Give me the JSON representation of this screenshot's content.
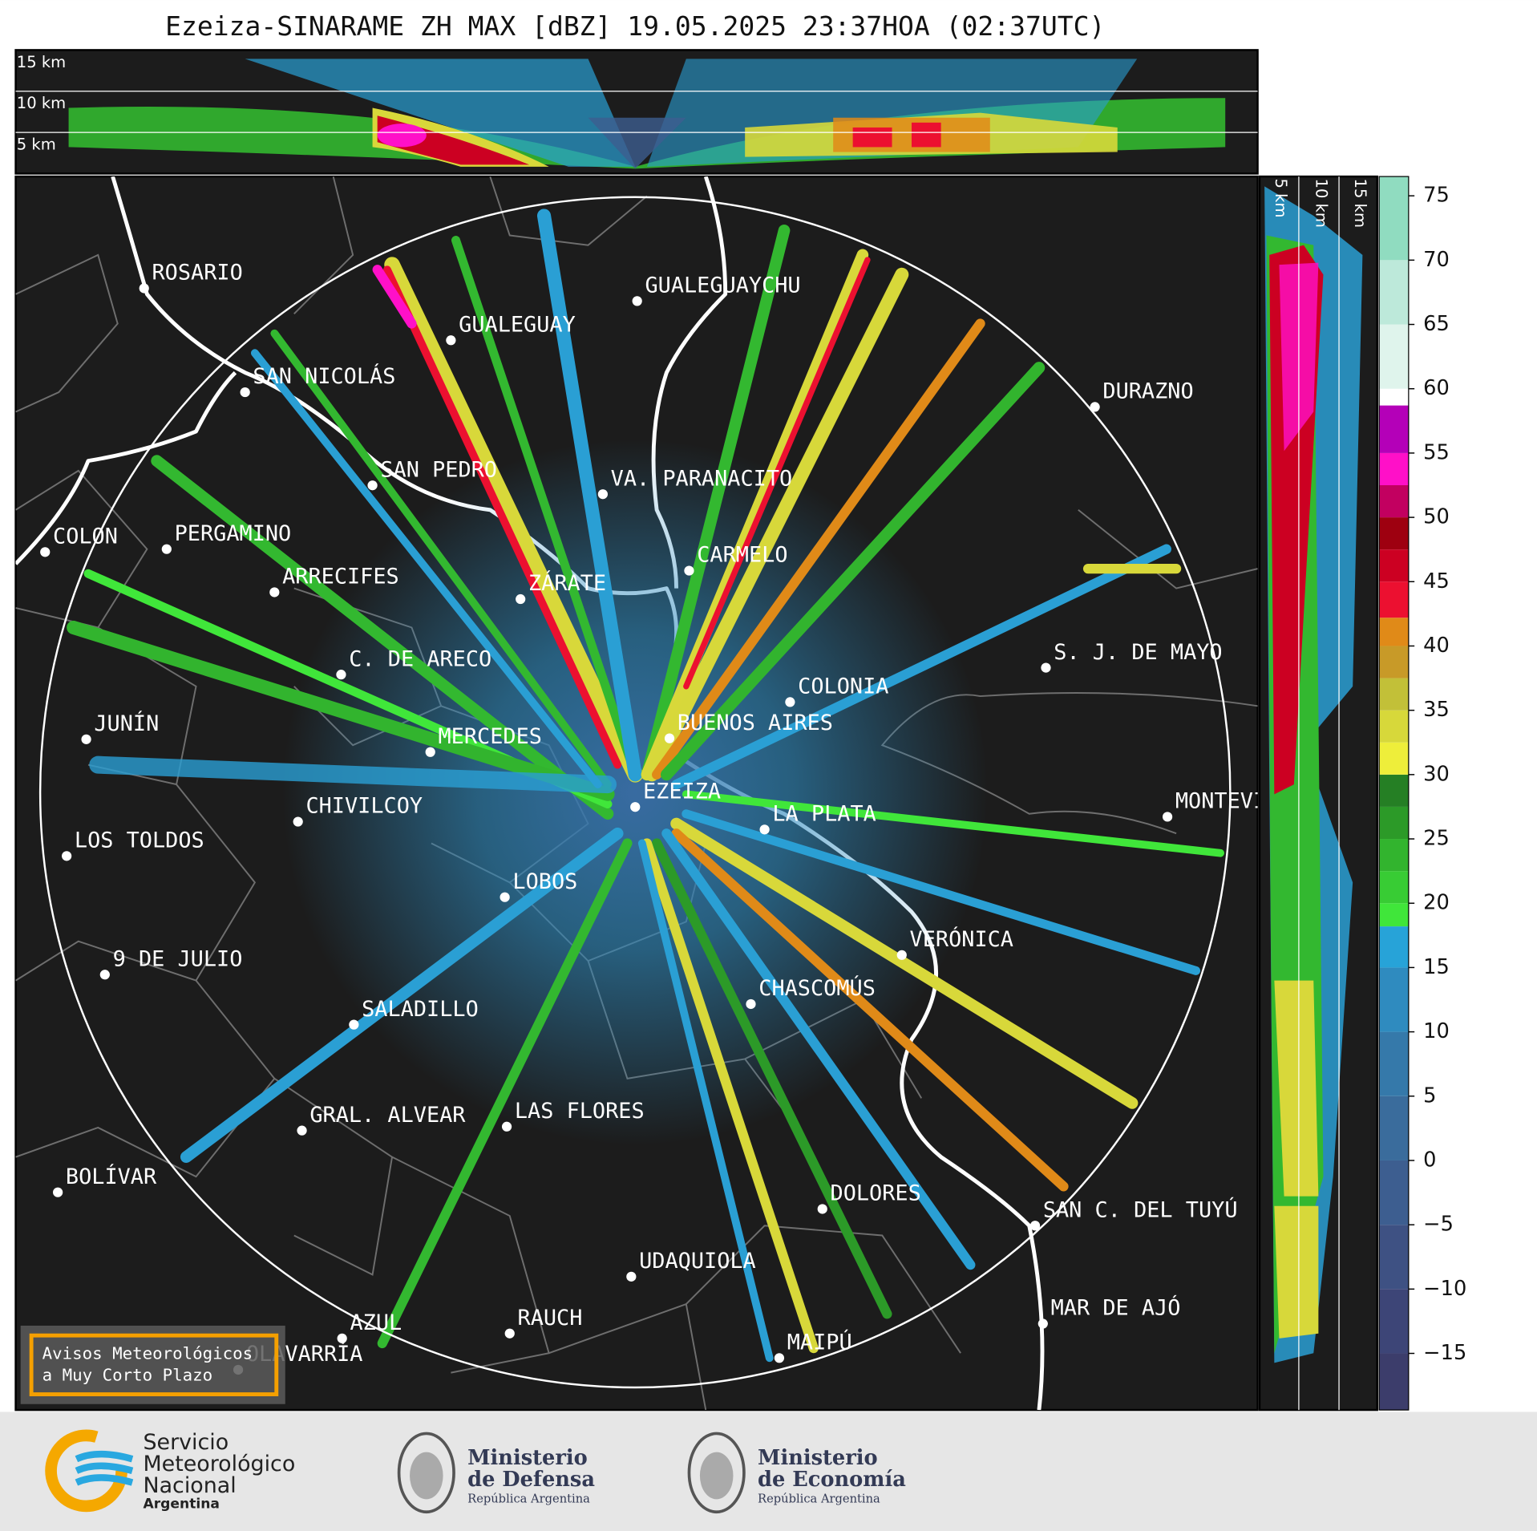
{
  "title": "Ezeiza-SINARAME ZH MAX [dBZ] 19.05.2025 23:37HOA (02:37UTC)",
  "top_panel": {
    "height_labels": [
      "15 km",
      "10 km",
      "5 km"
    ]
  },
  "side_panel": {
    "height_labels": [
      "5 km",
      "10 km",
      "15 km"
    ]
  },
  "cities": [
    "ROSARIO",
    "GUALEGUAYCHU",
    "GUALEGUAY",
    "SAN NICOLÁS",
    "DURAZNO",
    "SAN PEDRO",
    "VA. PARANACITO",
    "COLON",
    "PERGAMINO",
    "CARMELO",
    "ARRECIFES",
    "ZÁRATE",
    "S. J. DE MAYO",
    "C. DE ARECO",
    "COLONIA",
    "BUENOS AIRES",
    "JUNÍN",
    "MERCEDES",
    "EZEIZA",
    "MONTEVIDEO",
    "CHIVILCOY",
    "LA PLATA",
    "LOS TOLDOS",
    "LOBOS",
    "VERÓNICA",
    "9 DE JULIO",
    "CHASCOMÚS",
    "SALADILLO",
    "GRAL. ALVEAR",
    "LAS FLORES",
    "BOLÍVAR",
    "DOLORES",
    "SAN C. DEL TUYÚ",
    "UDAQUIOLA",
    "MAR DE AJÓ",
    "AZUL",
    "RAUCH",
    "MAIPÚ",
    "OLAVARRÍA"
  ],
  "colorbar": {
    "ylim": [
      -19.4,
      76.5
    ],
    "ticks": [
      75,
      70,
      65,
      60,
      55,
      50,
      45,
      40,
      35,
      30,
      25,
      20,
      15,
      10,
      5,
      0,
      {
        "value": -5,
        "label": "−5"
      },
      {
        "value": -10,
        "label": "−10"
      },
      {
        "value": -15,
        "label": "−15"
      }
    ],
    "bounds": [
      -19.4,
      -15,
      -10,
      -5,
      0,
      5,
      10,
      15,
      18.2,
      20,
      22.5,
      25,
      27.5,
      30,
      32.5,
      35,
      37.5,
      40,
      42.2,
      45,
      47.5,
      50,
      52.5,
      55,
      58.7,
      60,
      65,
      70,
      76.5
    ],
    "colors": [
      "#3c3d6b",
      "#3d4577",
      "#3e5183",
      "#3d5e90",
      "#3a6c9c",
      "#3579aa",
      "#2f8bbf",
      "#27a3d8",
      "#40e63a",
      "#38cc34",
      "#32b42e",
      "#2c9a28",
      "#257f24",
      "#eeee3a",
      "#d7d83a",
      "#c2c038",
      "#c89a28",
      "#e08a18",
      "#ec1030",
      "#cc0022",
      "#9e0010",
      "#c20060",
      "#ff10c8",
      "#b400b8",
      "#ffffff",
      "#dff4ec",
      "#bde9da",
      "#90dcc0"
    ]
  },
  "notice": [
    "Avisos Meteorológicos",
    "a Muy Corto Plazo"
  ],
  "logos": {
    "smn": [
      "Servicio",
      "Meteorológico",
      "Nacional",
      "Argentina"
    ],
    "defensa": [
      "Ministerio",
      "de Defensa",
      "República Argentina"
    ],
    "economia": [
      "Ministerio",
      "de Economía",
      "República Argentina"
    ]
  }
}
